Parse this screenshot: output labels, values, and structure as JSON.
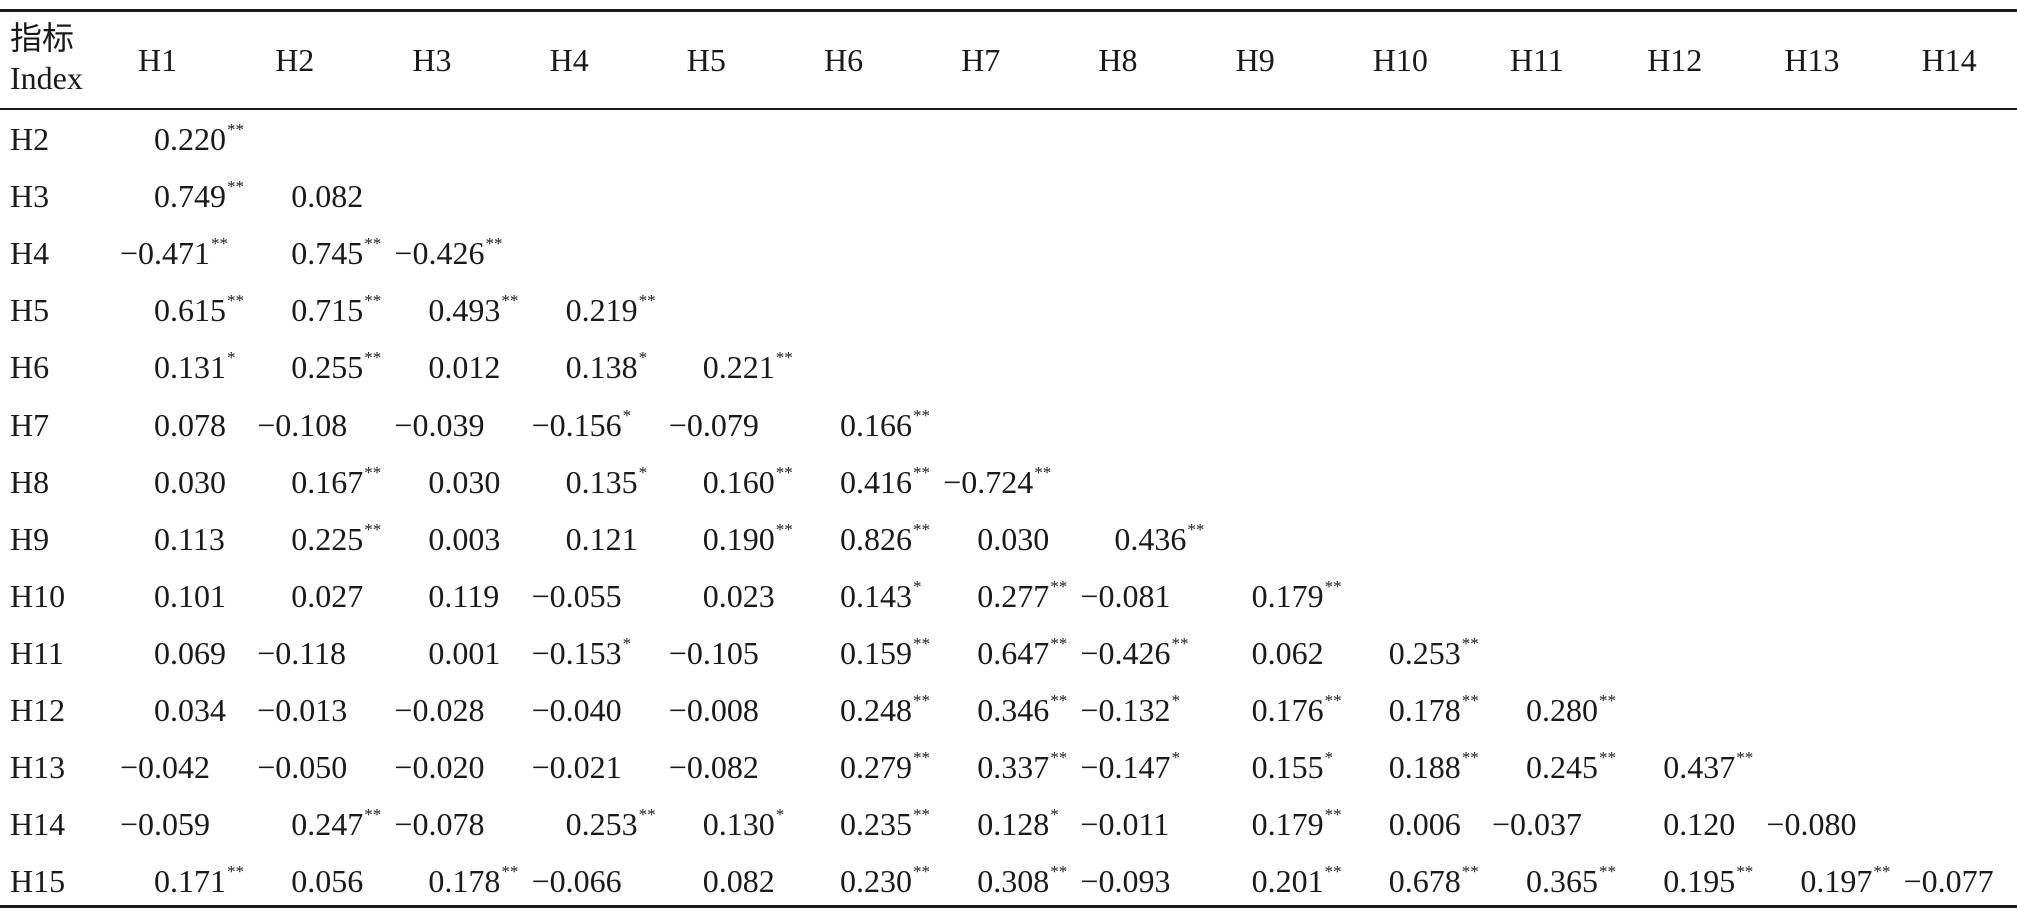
{
  "header": {
    "index_label_cn": "指标",
    "index_label_en": "Index",
    "columns": [
      "H1",
      "H2",
      "H3",
      "H4",
      "H5",
      "H6",
      "H7",
      "H8",
      "H9",
      "H10",
      "H11",
      "H12",
      "H13",
      "H14"
    ]
  },
  "rows": [
    {
      "label": "H2",
      "cells": [
        {
          "v": "0.220",
          "s": "**"
        }
      ]
    },
    {
      "label": "H3",
      "cells": [
        {
          "v": "0.749",
          "s": "**"
        },
        {
          "v": "0.082",
          "s": ""
        }
      ]
    },
    {
      "label": "H4",
      "cells": [
        {
          "v": "−0.471",
          "s": "**"
        },
        {
          "v": "0.745",
          "s": "**"
        },
        {
          "v": "−0.426",
          "s": "**"
        }
      ]
    },
    {
      "label": "H5",
      "cells": [
        {
          "v": "0.615",
          "s": "**"
        },
        {
          "v": "0.715",
          "s": "**"
        },
        {
          "v": "0.493",
          "s": "**"
        },
        {
          "v": "0.219",
          "s": "**"
        }
      ]
    },
    {
      "label": "H6",
      "cells": [
        {
          "v": "0.131",
          "s": "*"
        },
        {
          "v": "0.255",
          "s": "**"
        },
        {
          "v": "0.012",
          "s": ""
        },
        {
          "v": "0.138",
          "s": "*"
        },
        {
          "v": "0.221",
          "s": "**"
        }
      ]
    },
    {
      "label": "H7",
      "cells": [
        {
          "v": "0.078",
          "s": ""
        },
        {
          "v": "−0.108",
          "s": ""
        },
        {
          "v": "−0.039",
          "s": ""
        },
        {
          "v": "−0.156",
          "s": "*"
        },
        {
          "v": "−0.079",
          "s": ""
        },
        {
          "v": "0.166",
          "s": "**"
        }
      ]
    },
    {
      "label": "H8",
      "cells": [
        {
          "v": "0.030",
          "s": ""
        },
        {
          "v": "0.167",
          "s": "**"
        },
        {
          "v": "0.030",
          "s": ""
        },
        {
          "v": "0.135",
          "s": "*"
        },
        {
          "v": "0.160",
          "s": "**"
        },
        {
          "v": "0.416",
          "s": "**"
        },
        {
          "v": "−0.724",
          "s": "**"
        }
      ]
    },
    {
      "label": "H9",
      "cells": [
        {
          "v": "0.113",
          "s": ""
        },
        {
          "v": "0.225",
          "s": "**"
        },
        {
          "v": "0.003",
          "s": ""
        },
        {
          "v": "0.121",
          "s": ""
        },
        {
          "v": "0.190",
          "s": "**"
        },
        {
          "v": "0.826",
          "s": "**"
        },
        {
          "v": "0.030",
          "s": ""
        },
        {
          "v": "0.436",
          "s": "**"
        }
      ]
    },
    {
      "label": "H10",
      "cells": [
        {
          "v": "0.101",
          "s": ""
        },
        {
          "v": "0.027",
          "s": ""
        },
        {
          "v": "0.119",
          "s": ""
        },
        {
          "v": "−0.055",
          "s": ""
        },
        {
          "v": "0.023",
          "s": ""
        },
        {
          "v": "0.143",
          "s": "*"
        },
        {
          "v": "0.277",
          "s": "**"
        },
        {
          "v": "−0.081",
          "s": ""
        },
        {
          "v": "0.179",
          "s": "**"
        }
      ]
    },
    {
      "label": "H11",
      "cells": [
        {
          "v": "0.069",
          "s": ""
        },
        {
          "v": "−0.118",
          "s": ""
        },
        {
          "v": "0.001",
          "s": ""
        },
        {
          "v": "−0.153",
          "s": "*"
        },
        {
          "v": "−0.105",
          "s": ""
        },
        {
          "v": "0.159",
          "s": "**"
        },
        {
          "v": "0.647",
          "s": "**"
        },
        {
          "v": "−0.426",
          "s": "**"
        },
        {
          "v": "0.062",
          "s": ""
        },
        {
          "v": "0.253",
          "s": "**"
        }
      ]
    },
    {
      "label": "H12",
      "cells": [
        {
          "v": "0.034",
          "s": ""
        },
        {
          "v": "−0.013",
          "s": ""
        },
        {
          "v": "−0.028",
          "s": ""
        },
        {
          "v": "−0.040",
          "s": ""
        },
        {
          "v": "−0.008",
          "s": ""
        },
        {
          "v": "0.248",
          "s": "**"
        },
        {
          "v": "0.346",
          "s": "**"
        },
        {
          "v": "−0.132",
          "s": "*"
        },
        {
          "v": "0.176",
          "s": "**"
        },
        {
          "v": "0.178",
          "s": "**"
        },
        {
          "v": "0.280",
          "s": "**"
        }
      ]
    },
    {
      "label": "H13",
      "cells": [
        {
          "v": "−0.042",
          "s": ""
        },
        {
          "v": "−0.050",
          "s": ""
        },
        {
          "v": "−0.020",
          "s": ""
        },
        {
          "v": "−0.021",
          "s": ""
        },
        {
          "v": "−0.082",
          "s": ""
        },
        {
          "v": "0.279",
          "s": "**"
        },
        {
          "v": "0.337",
          "s": "**"
        },
        {
          "v": "−0.147",
          "s": "*"
        },
        {
          "v": "0.155",
          "s": "*"
        },
        {
          "v": "0.188",
          "s": "**"
        },
        {
          "v": "0.245",
          "s": "**"
        },
        {
          "v": "0.437",
          "s": "**"
        }
      ]
    },
    {
      "label": "H14",
      "cells": [
        {
          "v": "−0.059",
          "s": ""
        },
        {
          "v": "0.247",
          "s": "**"
        },
        {
          "v": "−0.078",
          "s": ""
        },
        {
          "v": "0.253",
          "s": "**"
        },
        {
          "v": "0.130",
          "s": "*"
        },
        {
          "v": "0.235",
          "s": "**"
        },
        {
          "v": "0.128",
          "s": "*"
        },
        {
          "v": "−0.011",
          "s": ""
        },
        {
          "v": "0.179",
          "s": "**"
        },
        {
          "v": "0.006",
          "s": ""
        },
        {
          "v": "−0.037",
          "s": ""
        },
        {
          "v": "0.120",
          "s": ""
        },
        {
          "v": "−0.080",
          "s": ""
        }
      ]
    },
    {
      "label": "H15",
      "cells": [
        {
          "v": "0.171",
          "s": "**"
        },
        {
          "v": "0.056",
          "s": ""
        },
        {
          "v": "0.178",
          "s": "**"
        },
        {
          "v": "−0.066",
          "s": ""
        },
        {
          "v": "0.082",
          "s": ""
        },
        {
          "v": "0.230",
          "s": "**"
        },
        {
          "v": "0.308",
          "s": "**"
        },
        {
          "v": "−0.093",
          "s": ""
        },
        {
          "v": "0.201",
          "s": "**"
        },
        {
          "v": "0.678",
          "s": "**"
        },
        {
          "v": "0.365",
          "s": "**"
        },
        {
          "v": "0.195",
          "s": "**"
        },
        {
          "v": "0.197",
          "s": "**"
        },
        {
          "v": "−0.077",
          "s": ""
        }
      ]
    }
  ]
}
